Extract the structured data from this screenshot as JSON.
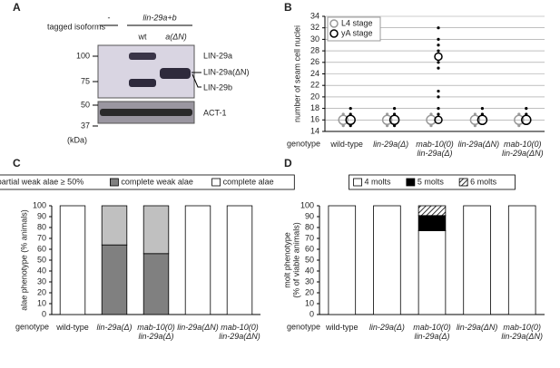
{
  "blot": {
    "label": "A",
    "header": "tagged isoforms",
    "minus": "-",
    "group": "lin-29a+b",
    "lanes": [
      "wt",
      "a(ΔN)"
    ],
    "markers": [
      "100",
      "75",
      "50",
      "37"
    ],
    "unit": "(kDa)",
    "bands": [
      "LIN-29a",
      "LIN-29a(ΔN)",
      "LIN-29b",
      "ACT-1"
    ]
  },
  "chart_data": [
    {
      "type": "scatter",
      "label": "B",
      "ylabel": "number of seam cell nuclei",
      "xlabel": "genotype",
      "categories": [
        "wild-type",
        "lin-29a(Δ)",
        "mab-10(0)\nlin-29a(Δ)",
        "lin-29a(ΔN)",
        "mab-10(0)\nlin-29a(ΔN)"
      ],
      "ylim": [
        14,
        34
      ],
      "yticks": [
        14,
        16,
        18,
        20,
        22,
        24,
        26,
        28,
        30,
        32,
        34
      ],
      "grid": true,
      "legend": "upper left",
      "series": [
        {
          "name": "L4 stage",
          "color": "#999999",
          "x": [
            "wild-type",
            "wild-type",
            "wild-type",
            "lin-29a(Δ)",
            "lin-29a(Δ)",
            "lin-29a(Δ)",
            "mab-10(0)\nlin-29a(Δ)",
            "mab-10(0)\nlin-29a(Δ)",
            "mab-10(0)\nlin-29a(Δ)",
            "lin-29a(ΔN)",
            "lin-29a(ΔN)",
            "lin-29a(ΔN)",
            "mab-10(0)\nlin-29a(ΔN)",
            "mab-10(0)\nlin-29a(ΔN)",
            "mab-10(0)\nlin-29a(ΔN)"
          ],
          "y": [
            16,
            17,
            15,
            16,
            17,
            15,
            16,
            17,
            15,
            16,
            17,
            15,
            16,
            17,
            15
          ],
          "size": [
            3,
            1,
            1,
            3,
            1,
            1,
            3,
            1,
            1,
            3,
            1,
            1,
            3,
            1,
            1
          ]
        },
        {
          "name": "yA stage",
          "color": "#000000",
          "x": [
            "wild-type",
            "wild-type",
            "wild-type",
            "wild-type",
            "lin-29a(Δ)",
            "lin-29a(Δ)",
            "lin-29a(Δ)",
            "lin-29a(Δ)",
            "mab-10(0)\nlin-29a(Δ)",
            "mab-10(0)\nlin-29a(Δ)",
            "mab-10(0)\nlin-29a(Δ)",
            "mab-10(0)\nlin-29a(Δ)",
            "mab-10(0)\nlin-29a(Δ)",
            "mab-10(0)\nlin-29a(Δ)",
            "mab-10(0)\nlin-29a(Δ)",
            "mab-10(0)\nlin-29a(Δ)",
            "mab-10(0)\nlin-29a(Δ)",
            "mab-10(0)\nlin-29a(Δ)",
            "mab-10(0)\nlin-29a(Δ)",
            "mab-10(0)\nlin-29a(Δ)",
            "lin-29a(ΔN)",
            "lin-29a(ΔN)",
            "lin-29a(ΔN)",
            "mab-10(0)\nlin-29a(ΔN)",
            "mab-10(0)\nlin-29a(ΔN)",
            "mab-10(0)\nlin-29a(ΔN)"
          ],
          "y": [
            16,
            17,
            15,
            18,
            16,
            17,
            18,
            15,
            16,
            17,
            18,
            20,
            21,
            25,
            26,
            27,
            28,
            29,
            30,
            32,
            16,
            17,
            18,
            16,
            17,
            18
          ],
          "size": [
            3,
            1,
            1,
            1,
            3,
            1,
            1,
            1,
            2,
            1,
            1,
            1,
            1,
            1,
            1,
            2,
            1,
            1,
            1,
            1,
            3,
            1,
            1,
            3,
            1,
            1
          ]
        }
      ]
    },
    {
      "type": "bar",
      "label": "C",
      "ylabel": "alae phenotype (% animals)",
      "xlabel": "genotype",
      "categories": [
        "wild-type",
        "lin-29a(Δ)",
        "mab-10(0)\nlin-29a(Δ)",
        "lin-29a(ΔN)",
        "mab-10(0)\nlin-29a(ΔN)"
      ],
      "ylim": [
        0,
        100
      ],
      "yticks": [
        0,
        10,
        20,
        30,
        40,
        50,
        60,
        70,
        80,
        90,
        100
      ],
      "legend": "top",
      "stack_from": "last",
      "series": [
        {
          "name": "partial weak alae ≥ 50%",
          "color": "#c0c0c0",
          "values": [
            0,
            36,
            44,
            0,
            0
          ]
        },
        {
          "name": "complete weak alae",
          "color": "#808080",
          "values": [
            0,
            64,
            56,
            0,
            0
          ]
        },
        {
          "name": "complete alae",
          "color": "#ffffff",
          "values": [
            100,
            0,
            0,
            100,
            100
          ]
        }
      ]
    },
    {
      "type": "bar",
      "label": "D",
      "ylabel": [
        "molt phenotype",
        "(% of viable animals)"
      ],
      "xlabel": "genotype",
      "categories": [
        "wild-type",
        "lin-29a(Δ)",
        "mab-10(0)\nlin-29a(Δ)",
        "lin-29a(ΔN)",
        "mab-10(0)\nlin-29a(ΔN)"
      ],
      "ylim": [
        0,
        100
      ],
      "yticks": [
        0,
        10,
        20,
        30,
        40,
        50,
        60,
        70,
        80,
        90,
        100
      ],
      "legend": "top",
      "stack_from": "first",
      "series": [
        {
          "name": "4 molts",
          "color": "#ffffff",
          "values": [
            100,
            100,
            77,
            100,
            100
          ]
        },
        {
          "name": "5 molts",
          "color": "#000000",
          "values": [
            0,
            0,
            14,
            0,
            0
          ]
        },
        {
          "name": "6 molts",
          "color": "#ffffff",
          "hatch": true,
          "values": [
            0,
            0,
            9,
            0,
            0
          ]
        }
      ]
    }
  ]
}
